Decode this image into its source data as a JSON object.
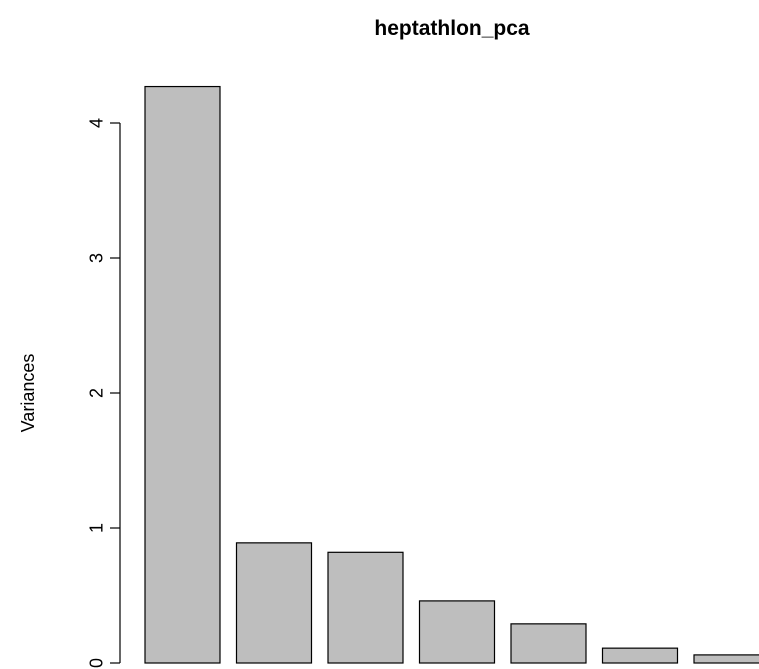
{
  "chart_data": {
    "type": "bar",
    "title": "heptathlon_pca",
    "xlabel": "",
    "ylabel": "Variances",
    "ylim": [
      0,
      4
    ],
    "yticks": [
      "0",
      "1",
      "2",
      "3",
      "4"
    ],
    "values": [
      4.27,
      0.89,
      0.82,
      0.46,
      0.29,
      0.11,
      0.06
    ],
    "bar_color": "#bebebe",
    "bar_border_color": "#000000",
    "grid": false,
    "legend": "none"
  }
}
